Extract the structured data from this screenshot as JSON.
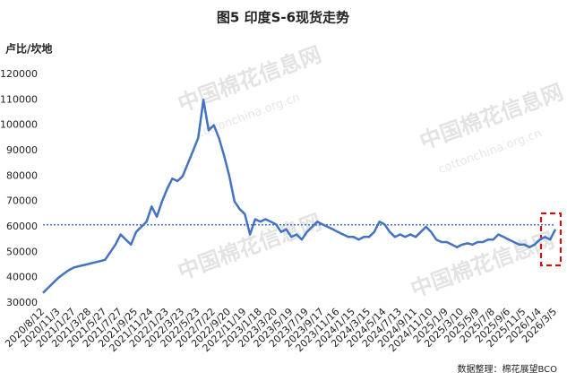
{
  "chart_data": {
    "type": "line",
    "title": "图5 印度S-6现货走势",
    "y_label": "卢比/坎地",
    "source": "数据整理：棉花展望BCO",
    "watermark": "中国棉花信息网",
    "watermark_url": "cottonchina.org.cn",
    "categories": [
      "2020/8/12",
      null,
      null,
      "2020/11/3",
      null,
      null,
      "2021/1/27",
      null,
      null,
      "2021/3/28",
      null,
      null,
      "2021/5/27",
      null,
      null,
      "2021/7/27",
      null,
      null,
      "2021/9/25",
      null,
      null,
      "2021/11/24",
      null,
      null,
      "2022/1/23",
      null,
      null,
      "2022/3/23",
      null,
      null,
      "2022/5/23",
      null,
      null,
      "2022/7/22",
      null,
      null,
      "2022/9/20",
      null,
      null,
      "2022/11/19",
      null,
      null,
      "2023/1/18",
      null,
      null,
      "2023/3/20",
      null,
      null,
      "2023/5/19",
      null,
      null,
      "2023/7/19",
      null,
      null,
      "2023/9/17",
      null,
      null,
      "2023/11/16",
      null,
      null,
      "2024/1/15",
      null,
      null,
      "2024/3/15",
      null,
      null,
      "2024/5/14",
      null,
      null,
      "2024/7/13",
      null,
      null,
      "2024/9/11",
      null,
      null,
      "2024/11/10",
      null,
      null,
      "2025/1/9",
      null,
      null,
      "2025/3/10",
      null,
      null,
      "2025/5/9",
      null,
      null,
      "2025/7/8",
      null,
      null,
      "2025/9/6",
      null,
      null,
      "2025/11/5",
      null,
      null,
      "2026/1/4",
      null,
      null,
      "2026/3/5"
    ],
    "series": [
      {
        "name": "S-6",
        "color": "#4472c4",
        "values": [
          34000,
          36000,
          38000,
          40000,
          41500,
          43000,
          44000,
          44500,
          45000,
          45500,
          46000,
          46500,
          47000,
          50000,
          53000,
          57000,
          55000,
          53000,
          58000,
          60000,
          62000,
          68000,
          64000,
          70000,
          75000,
          79000,
          78000,
          80000,
          85000,
          90000,
          95000,
          110000,
          98000,
          100000,
          95000,
          88000,
          80000,
          70000,
          67000,
          65000,
          57000,
          63000,
          62000,
          63000,
          62000,
          61000,
          58000,
          59000,
          56000,
          57000,
          55000,
          58000,
          60000,
          62000,
          61000,
          60000,
          59000,
          58000,
          57000,
          56000,
          56000,
          55000,
          56000,
          56000,
          58000,
          62000,
          61000,
          58000,
          56000,
          57000,
          56000,
          57000,
          56000,
          58000,
          60000,
          58000,
          55000,
          54000,
          54000,
          53000,
          52000,
          53000,
          53500,
          53000,
          54000,
          54000,
          55000,
          55000,
          57000,
          56000,
          55000,
          54000,
          53000,
          53000,
          52000,
          53000,
          55000,
          56000,
          55000,
          59000
        ]
      }
    ],
    "reference_line": {
      "value": 60800,
      "color": "#4472c4"
    },
    "ylim": [
      30000,
      120000
    ],
    "yticks": [
      30000,
      40000,
      50000,
      60000,
      70000,
      80000,
      90000,
      100000,
      110000,
      120000
    ],
    "grid": false
  }
}
